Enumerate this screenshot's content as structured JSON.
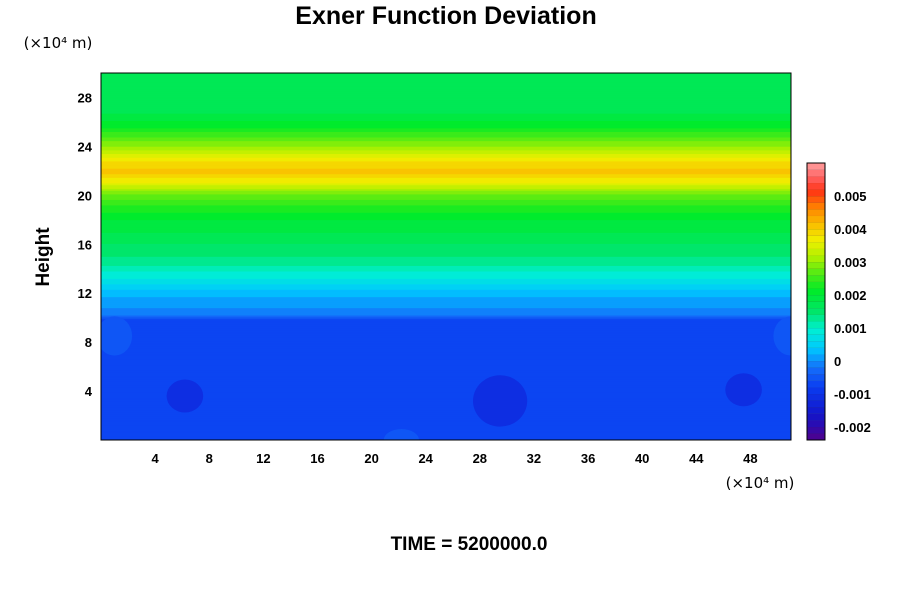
{
  "chart_data": {
    "type": "heatmap",
    "title": "Exner Function Deviation",
    "ylabel": "Height",
    "xunit": "(×10⁴ m)",
    "yunit": "(×10⁴ m)",
    "time_label": "TIME = 5200000.0",
    "xlim": [
      0,
      51
    ],
    "ylim": [
      0,
      30
    ],
    "x_ticks": [
      "4",
      "8",
      "12",
      "16",
      "20",
      "24",
      "28",
      "32",
      "36",
      "40",
      "44",
      "48"
    ],
    "y_ticks": [
      "4",
      "8",
      "12",
      "16",
      "20",
      "24",
      "28"
    ],
    "colorbar": {
      "range": [
        -0.0024,
        0.006
      ],
      "tick_values": [
        0.005,
        0.004,
        0.003,
        0.002,
        0.001,
        0,
        -0.001,
        -0.002
      ],
      "tick_labels": [
        "0.005",
        "0.004",
        "0.003",
        "0.002",
        "0.001",
        "0",
        "-0.001",
        "-0.002"
      ]
    },
    "vertical_profile": [
      {
        "height": 0,
        "value": -0.0008
      },
      {
        "height": 9.8,
        "value": -0.0008
      },
      {
        "height": 10.2,
        "value": -0.0001
      },
      {
        "height": 11.5,
        "value": 0.0001
      },
      {
        "height": 12.5,
        "value": 0.0005
      },
      {
        "height": 14.5,
        "value": 0.0013
      },
      {
        "height": 16.0,
        "value": 0.0016
      },
      {
        "height": 18.0,
        "value": 0.002
      },
      {
        "height": 20.0,
        "value": 0.0027
      },
      {
        "height": 21.0,
        "value": 0.0036
      },
      {
        "height": 22.0,
        "value": 0.0041
      },
      {
        "height": 23.0,
        "value": 0.0037
      },
      {
        "height": 24.0,
        "value": 0.003
      },
      {
        "height": 25.5,
        "value": 0.0022
      },
      {
        "height": 27.0,
        "value": 0.0017
      },
      {
        "height": 30.0,
        "value": 0.0016
      }
    ],
    "features": [
      {
        "name": "low-blob",
        "x": 6.2,
        "y": 3.6,
        "value": -0.0012
      },
      {
        "name": "low-blob",
        "x": 29.5,
        "y": 3.2,
        "value": -0.0012
      },
      {
        "name": "low-blob",
        "x": 47.5,
        "y": 4.1,
        "value": -0.0012
      },
      {
        "name": "high-blob",
        "x": 22.2,
        "y": 0.0,
        "value": -0.0005
      },
      {
        "name": "high-blob",
        "x": 1.0,
        "y": 8.5,
        "value": -0.0005
      },
      {
        "name": "high-blob",
        "x": 51.0,
        "y": 8.5,
        "value": -0.0005
      }
    ]
  }
}
